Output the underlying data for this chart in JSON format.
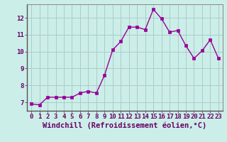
{
  "x": [
    0,
    1,
    2,
    3,
    4,
    5,
    6,
    7,
    8,
    9,
    10,
    11,
    12,
    13,
    14,
    15,
    16,
    17,
    18,
    19,
    20,
    21,
    22,
    23
  ],
  "y": [
    6.9,
    6.85,
    7.3,
    7.3,
    7.3,
    7.3,
    7.55,
    7.65,
    7.55,
    8.6,
    10.1,
    10.6,
    11.45,
    11.45,
    11.3,
    12.5,
    11.95,
    11.15,
    11.25,
    10.35,
    9.6,
    10.05,
    10.7,
    9.6
  ],
  "line_color": "#990099",
  "marker": "s",
  "markersize": 2.5,
  "linewidth": 1.0,
  "bg_color": "#cceee8",
  "grid_color": "#aacccc",
  "xlabel": "Windchill (Refroidissement éolien,°C)",
  "xlabel_color": "#660066",
  "xlabel_fontsize": 7.5,
  "ylim": [
    6.5,
    12.8
  ],
  "xlim": [
    -0.5,
    23.5
  ],
  "yticks": [
    7,
    8,
    9,
    10,
    11,
    12
  ],
  "xticks": [
    0,
    1,
    2,
    3,
    4,
    5,
    6,
    7,
    8,
    9,
    10,
    11,
    12,
    13,
    14,
    15,
    16,
    17,
    18,
    19,
    20,
    21,
    22,
    23
  ],
  "tick_fontsize": 6.5,
  "tick_color": "#660066",
  "spine_color": "#888888"
}
